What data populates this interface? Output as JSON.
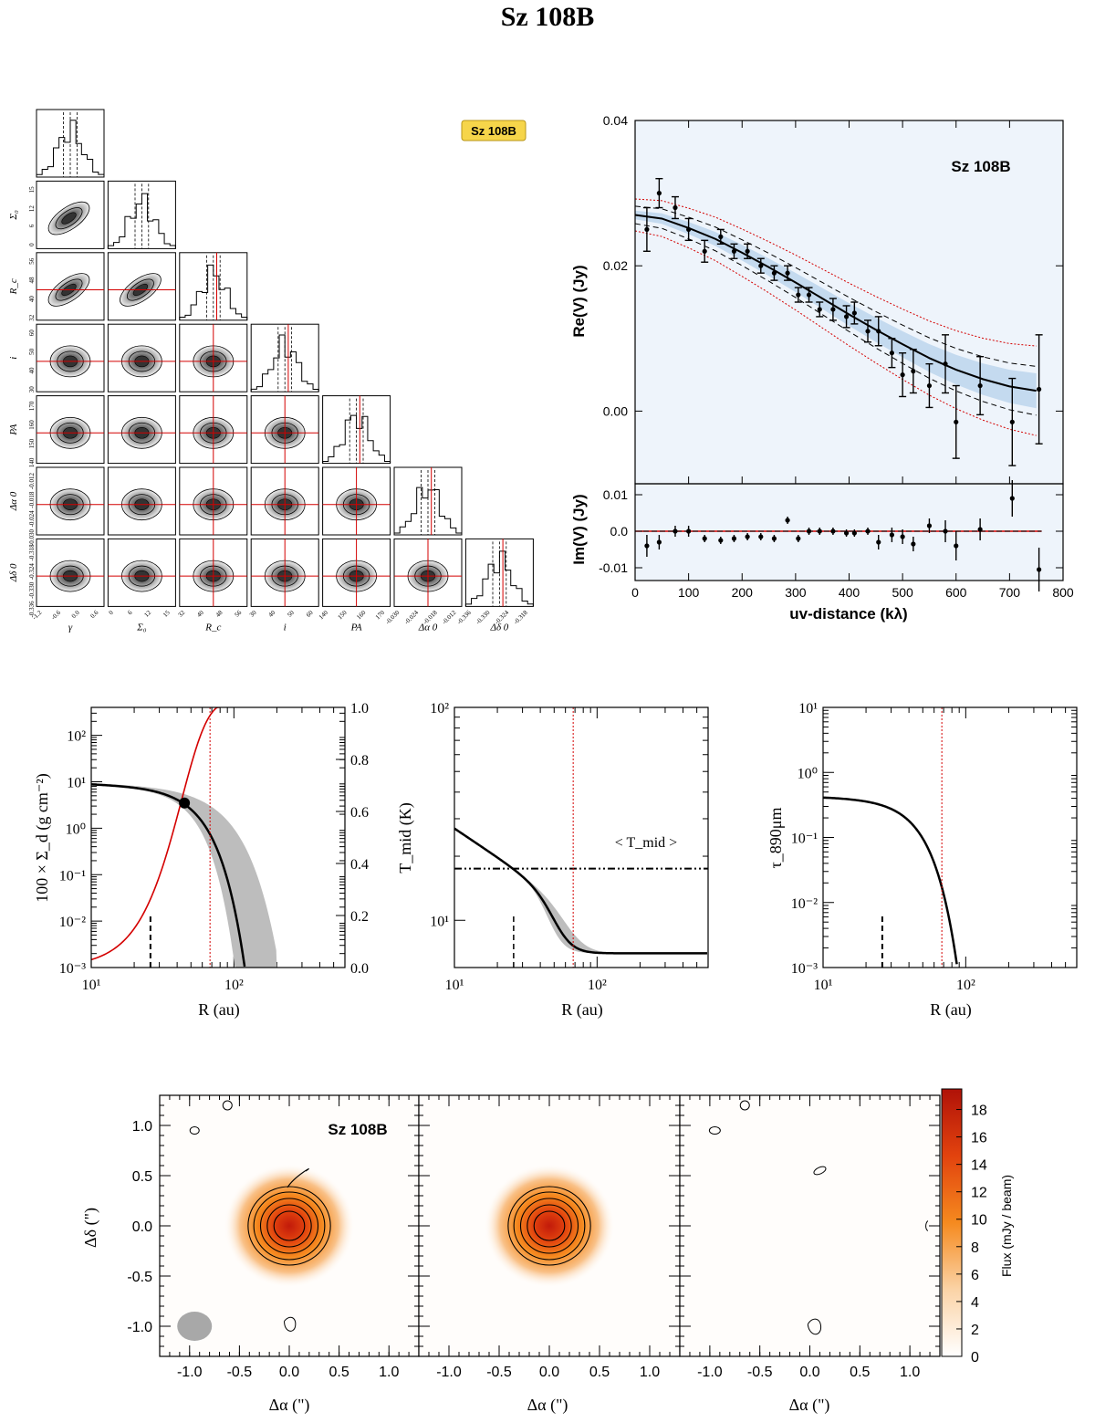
{
  "figure_title": "Sz 108B",
  "colors": {
    "model": "#000000",
    "fit_red": "#d40000",
    "band_gray": "#bdbdbd",
    "bg_blue": "#eef4fb",
    "cmap_low": "#ffffff",
    "cmap_mid": "#f58a1f",
    "cmap_high": "#c21a0a",
    "badge": "#f6d54a"
  },
  "corner": {
    "badge": "Sz 108B",
    "params": [
      {
        "label": "γ",
        "ticks": [
          "-1.2",
          "-0.6",
          "0.0",
          "0.6"
        ]
      },
      {
        "label": "Σ₀",
        "ticks": [
          "0",
          "6",
          "12",
          "15"
        ]
      },
      {
        "label": "R_c",
        "ticks": [
          "32",
          "40",
          "48",
          "56"
        ]
      },
      {
        "label": "i",
        "ticks": [
          "30",
          "40",
          "50",
          "60"
        ]
      },
      {
        "label": "PA",
        "ticks": [
          "140",
          "150",
          "160",
          "170"
        ]
      },
      {
        "label": "Δα 0",
        "ticks": [
          "-0.030",
          "-0.024",
          "-0.018",
          "-0.012"
        ]
      },
      {
        "label": "Δδ 0",
        "ticks": [
          "-0.336",
          "-0.330",
          "-0.324",
          "-0.318"
        ]
      }
    ]
  },
  "chart_data": [
    {
      "id": "visibility_real",
      "type": "scatter",
      "title": "Sz 108B",
      "xlabel": "uv-distance (kλ)",
      "ylabel": "Re(V) (Jy)",
      "xlim": [
        0,
        800
      ],
      "ylim": [
        -0.01,
        0.04
      ],
      "xticks": [
        "0",
        "100",
        "200",
        "300",
        "400",
        "500",
        "600",
        "700",
        "800"
      ],
      "yticks": [
        "0.00",
        "0.02",
        "0.04"
      ],
      "points": {
        "x": [
          22,
          45,
          75,
          100,
          130,
          160,
          185,
          210,
          235,
          260,
          285,
          305,
          325,
          345,
          370,
          395,
          410,
          435,
          455,
          480,
          500,
          520,
          550,
          580,
          600,
          645,
          705,
          755
        ],
        "y": [
          0.025,
          0.03,
          0.028,
          0.025,
          0.022,
          0.024,
          0.022,
          0.022,
          0.02,
          0.019,
          0.019,
          0.016,
          0.016,
          0.014,
          0.014,
          0.013,
          0.0135,
          0.011,
          0.011,
          0.008,
          0.005,
          0.0055,
          0.0035,
          0.0065,
          -0.0015,
          0.0035,
          -0.0015,
          0.003
        ],
        "err": [
          0.003,
          0.002,
          0.0015,
          0.0015,
          0.0015,
          0.001,
          0.001,
          0.001,
          0.001,
          0.001,
          0.001,
          0.001,
          0.001,
          0.001,
          0.0015,
          0.0015,
          0.0015,
          0.0015,
          0.002,
          0.002,
          0.003,
          0.003,
          0.003,
          0.004,
          0.005,
          0.004,
          0.006,
          0.0075
        ]
      },
      "model": {
        "x": [
          0,
          50,
          100,
          150,
          200,
          250,
          300,
          350,
          400,
          450,
          500,
          550,
          600,
          650,
          700,
          750
        ],
        "y": [
          0.027,
          0.0265,
          0.0252,
          0.0237,
          0.0218,
          0.0198,
          0.0177,
          0.0155,
          0.0133,
          0.0112,
          0.0092,
          0.0073,
          0.0057,
          0.0044,
          0.0034,
          0.0028
        ]
      }
    },
    {
      "id": "visibility_imag",
      "type": "scatter",
      "ylabel": "Im(V) (Jy)",
      "xlim": [
        0,
        800
      ],
      "ylim": [
        -0.0135,
        0.013
      ],
      "yticks": [
        "0.01",
        "0.0",
        "-0.01"
      ],
      "points": {
        "x": [
          22,
          45,
          75,
          100,
          130,
          160,
          185,
          210,
          235,
          260,
          285,
          305,
          325,
          345,
          370,
          395,
          410,
          435,
          455,
          480,
          500,
          520,
          550,
          580,
          600,
          645,
          705,
          755
        ],
        "y": [
          -0.004,
          -0.003,
          0.0,
          0.0,
          -0.002,
          -0.0025,
          -0.002,
          -0.0015,
          -0.0015,
          -0.002,
          0.003,
          -0.002,
          0.0,
          0.0,
          0.0,
          -0.0005,
          -0.0005,
          0.0,
          -0.003,
          -0.001,
          -0.0015,
          -0.0035,
          0.0015,
          0.0,
          -0.004,
          0.0005,
          0.009,
          -0.0105
        ],
        "err": [
          0.003,
          0.002,
          0.0015,
          0.0015,
          0.001,
          0.001,
          0.001,
          0.001,
          0.001,
          0.001,
          0.001,
          0.001,
          0.001,
          0.001,
          0.001,
          0.001,
          0.001,
          0.001,
          0.002,
          0.002,
          0.002,
          0.002,
          0.002,
          0.003,
          0.004,
          0.003,
          0.005,
          0.006
        ]
      }
    },
    {
      "id": "surface_density",
      "type": "line",
      "xlabel": "R (au)",
      "ylabel": "100 × Σ_d (g cm⁻²)",
      "xlim": [
        10,
        600
      ],
      "ylim": [
        0.001,
        400
      ],
      "xticks": [
        "10¹",
        "10²"
      ],
      "yticks": [
        "10⁻³",
        "10⁻²",
        "10⁻¹",
        "10⁰",
        "10¹",
        "10²"
      ],
      "y2ticks": [
        "0.0",
        "0.2",
        "0.4",
        "0.6",
        "0.8",
        "1.0"
      ],
      "rc_line": 68,
      "beam_line": 26,
      "intersect": {
        "r": 45,
        "value": 3.5
      }
    },
    {
      "id": "midplane_temperature",
      "type": "line",
      "xlabel": "R (au)",
      "ylabel": "T_mid (K)",
      "xlim": [
        10,
        600
      ],
      "ylim": [
        6,
        100
      ],
      "xticks": [
        "10¹",
        "10²"
      ],
      "yticks": [
        "10¹",
        "10²"
      ],
      "annotation": "< T_mid >",
      "mean_temperature": 17.5,
      "floor_temperature": 7
    },
    {
      "id": "optical_depth",
      "type": "line",
      "xlabel": "R (au)",
      "ylabel": "τ_890μm",
      "xlim": [
        10,
        600
      ],
      "ylim": [
        0.001,
        10
      ],
      "xticks": [
        "10¹",
        "10²"
      ],
      "yticks": [
        "10⁻³",
        "10⁻²",
        "10⁻¹",
        "10⁰",
        "10¹"
      ]
    },
    {
      "id": "image_maps",
      "type": "heatmap",
      "panels": [
        "data",
        "model",
        "residual"
      ],
      "label": "Sz 108B",
      "xlabel": "Δα (\")",
      "ylabel": "Δδ (\")",
      "xticks": [
        "-1.0",
        "-0.5",
        "0.0",
        "0.5",
        "1.0"
      ],
      "yticks": [
        "1.0",
        "0.5",
        "0.0",
        "-0.5",
        "-1.0"
      ],
      "colorbar_label": "Flux (mJy / beam)",
      "colorbar_ticks": [
        "0",
        "2",
        "4",
        "6",
        "8",
        "10",
        "12",
        "14",
        "16",
        "18"
      ],
      "colorbar_range": [
        0,
        19.5
      ]
    }
  ]
}
